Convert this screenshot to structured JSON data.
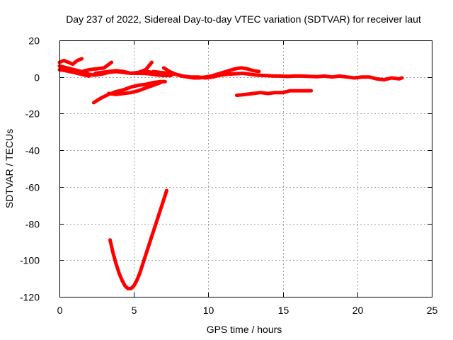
{
  "chart_data": {
    "type": "line",
    "title": "Day 237 of 2022, Sidereal Day-to-day VTEC variation (SDTVAR) for receiver laut",
    "xlabel": "GPS time / hours",
    "ylabel": "SDTVAR / TECUs",
    "xlim": [
      0,
      25
    ],
    "ylim": [
      -120,
      20
    ],
    "xticks": [
      0,
      5,
      10,
      15,
      20,
      25
    ],
    "yticks": [
      -120,
      -100,
      -80,
      -60,
      -40,
      -20,
      0,
      20
    ],
    "grid": true,
    "legend": "none",
    "series_color": "#ff0000",
    "series": [
      {
        "x": [
          0,
          0.3,
          0.6,
          0.9,
          1.2,
          1.5
        ],
        "y": [
          8,
          9,
          8,
          7,
          9,
          10
        ]
      },
      {
        "x": [
          0,
          0.5,
          1.0,
          1.5,
          2.0,
          2.3,
          2.8,
          3.3,
          3.8,
          4.3,
          4.8,
          5.3,
          5.8,
          6.3,
          6.8,
          7.3
        ],
        "y": [
          6,
          5,
          4,
          3,
          1.5,
          1,
          1.5,
          2.5,
          3,
          2.5,
          2,
          2.5,
          3,
          2.5,
          2,
          2
        ]
      },
      {
        "x": [
          0,
          0.4,
          0.8,
          1.2,
          1.6,
          2.0
        ],
        "y": [
          4,
          3.5,
          2.8,
          2,
          1.2,
          0.5
        ]
      },
      {
        "x": [
          1.5,
          2.0,
          2.5,
          3.0,
          3.5
        ],
        "y": [
          3,
          4,
          4.5,
          5,
          8
        ]
      },
      {
        "x": [
          2.4,
          2.8,
          3.3,
          3.8,
          4.3,
          4.8,
          5.3,
          5.8,
          6.2
        ],
        "y": [
          2,
          2.5,
          3,
          3.5,
          3,
          2,
          2.5,
          4,
          8
        ]
      },
      {
        "x": [
          5.0,
          5.5,
          6.0,
          6.5,
          7.0,
          7.5
        ],
        "y": [
          2,
          2,
          1.8,
          1.2,
          0.8,
          0.8
        ]
      },
      {
        "x": [
          6.3,
          6.8,
          7.3,
          7.8,
          8.3,
          8.8,
          9.3,
          9.8,
          10.3,
          10.8,
          11.3,
          11.8,
          12.3,
          12.8,
          13.3,
          13.8,
          14.3,
          14.8,
          15.3,
          15.8,
          16.3,
          16.8,
          17.3,
          17.8,
          18.3,
          18.8,
          19.3,
          19.8,
          20.3,
          20.8,
          21.3,
          21.8,
          22.3,
          22.8,
          23.0
        ],
        "y": [
          3,
          2.5,
          2,
          1.5,
          0.5,
          0,
          0,
          -0.5,
          0,
          1,
          1.5,
          1.8,
          2,
          1.5,
          1,
          0.8,
          0.6,
          0.5,
          0.3,
          0.5,
          0.5,
          0.3,
          0.2,
          0.5,
          0,
          0.5,
          0,
          -0.5,
          0,
          0,
          -1,
          -1.5,
          -0.5,
          -1,
          -0.5
        ]
      },
      {
        "x": [
          7.0,
          7.4,
          7.8,
          8.2,
          8.6,
          9.0,
          9.4,
          9.8,
          10.2,
          10.6,
          11.0,
          11.4,
          11.8,
          12.2,
          12.6,
          13.0,
          13.4
        ],
        "y": [
          5,
          3,
          1.5,
          0.5,
          0,
          -0.5,
          -0.5,
          0,
          0.5,
          1.5,
          2.5,
          3.5,
          4.5,
          5,
          4.5,
          3.5,
          3
        ]
      },
      {
        "x": [
          2.3,
          2.8,
          3.3,
          3.8,
          4.3,
          4.8,
          5.3,
          5.8,
          6.3,
          6.8,
          7.1
        ],
        "y": [
          -14,
          -11.5,
          -9.5,
          -8,
          -7,
          -5.5,
          -4.5,
          -4,
          -3,
          -2.5,
          -2.5
        ]
      },
      {
        "x": [
          3.3,
          3.8,
          4.3,
          4.8,
          5.3,
          5.8,
          6.3,
          6.8
        ],
        "y": [
          -9,
          -9.5,
          -9,
          -8.5,
          -7.5,
          -6,
          -4.5,
          -3
        ]
      },
      {
        "x": [
          11.9,
          12.5,
          13.0,
          13.5,
          14.0,
          14.5,
          15.0,
          15.5,
          16.0,
          16.5,
          16.9
        ],
        "y": [
          -10,
          -9.5,
          -9,
          -8.5,
          -9,
          -8.5,
          -8.5,
          -7.5,
          -7.5,
          -7.5,
          -7.5
        ]
      },
      {
        "x": [
          3.4,
          3.6,
          3.8,
          4.0,
          4.2,
          4.4,
          4.6,
          4.8,
          5.0,
          5.2,
          5.4,
          5.6,
          5.8,
          6.0,
          6.2,
          6.4,
          6.6,
          6.8,
          7.0,
          7.2
        ],
        "y": [
          -89,
          -96,
          -102,
          -107,
          -111,
          -114,
          -115.5,
          -115.5,
          -114,
          -111,
          -107,
          -102,
          -97,
          -92,
          -87,
          -82,
          -77,
          -72,
          -67,
          -62
        ]
      }
    ]
  }
}
